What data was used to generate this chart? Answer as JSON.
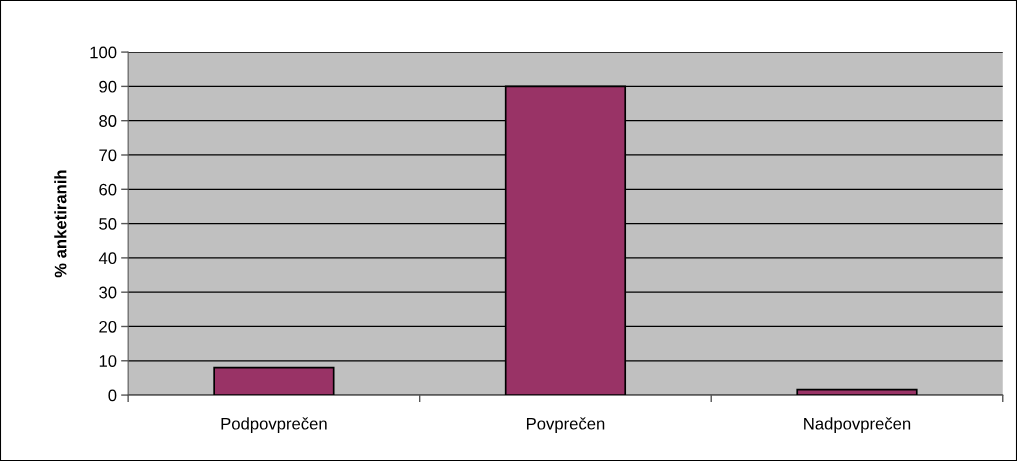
{
  "chart_data": {
    "type": "bar",
    "ylabel": "% anketiranih",
    "categories": [
      "Podpovprečen",
      "Povprečen",
      "Nadpovprečen"
    ],
    "values": [
      8,
      90,
      1.6
    ],
    "color": "#993366",
    "ylim": [
      0,
      100
    ],
    "yticks": [
      0,
      10,
      20,
      30,
      40,
      50,
      60,
      70,
      80,
      90,
      100
    ],
    "grid": "y",
    "legend": false
  }
}
